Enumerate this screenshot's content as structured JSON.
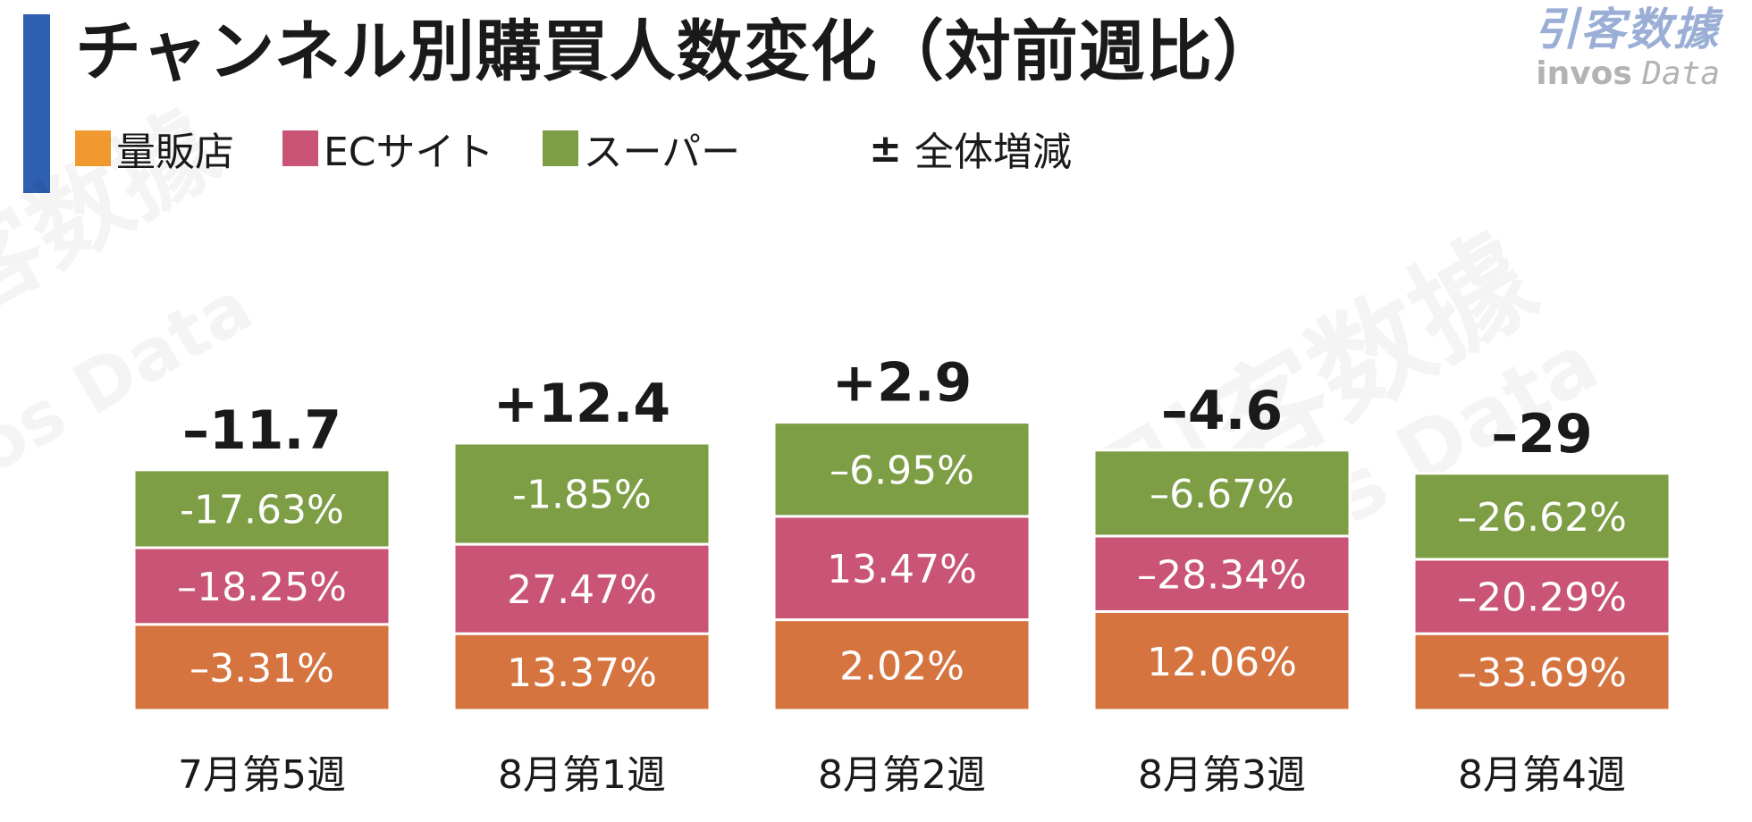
{
  "title": "チャンネル別購買人数変化（対前週比）",
  "logo": {
    "brand_cn": "引客数據",
    "brand_en_bold": "invos",
    "brand_en_italic": "Data"
  },
  "legend": {
    "items": [
      {
        "label": "量販店",
        "color": "#f0992f"
      },
      {
        "label": "ECサイト",
        "color": "#c95475"
      },
      {
        "label": "スーパー",
        "color": "#7d9e45"
      }
    ],
    "total_symbol": "±",
    "total_label": "全体増減"
  },
  "watermark": {
    "cn": "引客数據",
    "en": "invos Data"
  },
  "chart_data": {
    "type": "bar",
    "stacked": true,
    "categories": [
      "7月第5週",
      "8月第1週",
      "8月第2週",
      "8月第3週",
      "8月第4週"
    ],
    "series": [
      {
        "name": "量販店",
        "color": "#d67440",
        "values": [
          "–3.31%",
          "13.37%",
          "2.02%",
          "12.06%",
          "–33.69%"
        ]
      },
      {
        "name": "ECサイト",
        "color": "#c95475",
        "values": [
          "–18.25%",
          "27.47%",
          "13.47%",
          "–28.34%",
          "–20.29%"
        ]
      },
      {
        "name": "スーパー",
        "color": "#7d9e45",
        "values": [
          "-17.63%",
          "-1.85%",
          "–6.95%",
          "–6.67%",
          "–26.62%"
        ]
      }
    ],
    "totals": [
      "–11.7",
      "+12.4",
      "+2.9",
      "–4.6",
      "–29"
    ],
    "segment_heights": [
      [
        0.74,
        0.66,
        0.78,
        0.85,
        0.66
      ],
      [
        0.66,
        0.77,
        0.89,
        0.65,
        0.64
      ],
      [
        0.67,
        0.87,
        0.81,
        0.74,
        0.74
      ]
    ],
    "legend_position": "top-left",
    "grid": false
  }
}
